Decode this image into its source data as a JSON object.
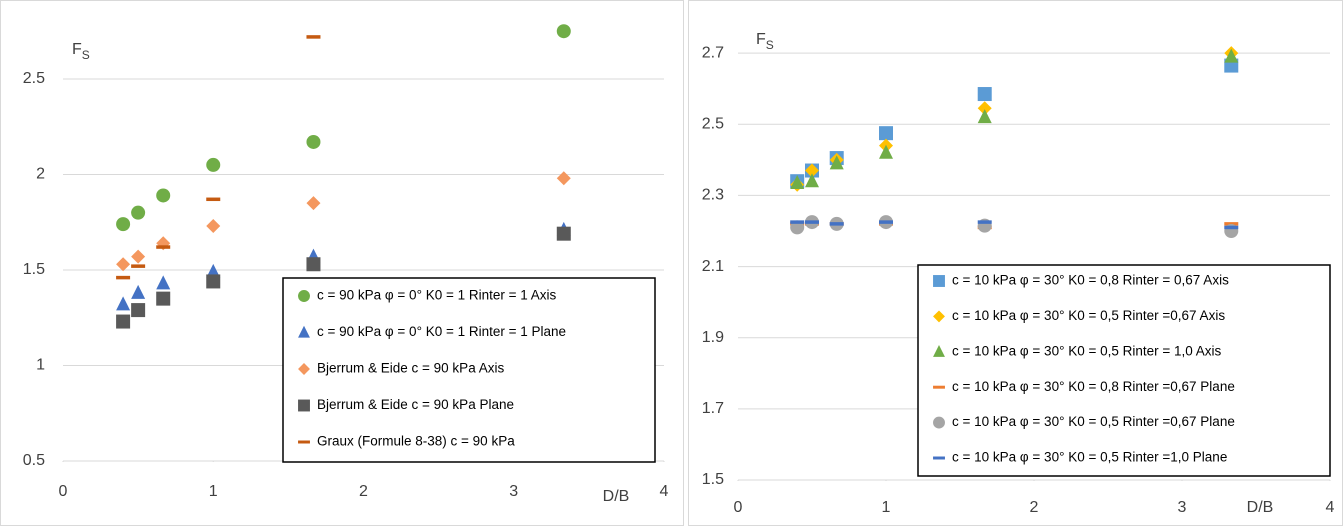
{
  "chart_data": [
    {
      "type": "scatter",
      "y_label": "F",
      "y_label_sub": "S",
      "x_label": "D/B",
      "xlim": [
        0,
        4
      ],
      "xticks": [
        0,
        1,
        2,
        3,
        4
      ],
      "ylim": [
        0.5,
        2.84
      ],
      "yticks": [
        0.5,
        1,
        1.5,
        2,
        2.5
      ],
      "grid": true,
      "series": [
        {
          "name": "c = 90 kPa φ = 0° K0 = 1 Rinter = 1 Axis",
          "color": "#70ad47",
          "marker": "circle",
          "x": [
            0.4,
            0.5,
            0.667,
            1,
            1.667,
            3.333
          ],
          "values": [
            1.74,
            1.8,
            1.89,
            2.05,
            2.17,
            2.75
          ]
        },
        {
          "name": "c = 90 kPa φ = 0° K0 = 1 Rinter = 1 Plane",
          "color": "#4472c4",
          "marker": "triangle",
          "x": [
            0.4,
            0.5,
            0.667,
            1,
            1.667,
            3.333
          ],
          "values": [
            1.32,
            1.38,
            1.43,
            1.49,
            1.57,
            1.71
          ]
        },
        {
          "name": "Bjerrum & Eide c = 90 kPa Axis",
          "color": "#f4975e",
          "marker": "diamond",
          "x": [
            0.4,
            0.5,
            0.667,
            1,
            1.667,
            3.333
          ],
          "values": [
            1.53,
            1.57,
            1.64,
            1.73,
            1.85,
            1.98
          ]
        },
        {
          "name": "Bjerrum & Eide c = 90 kPa Plane",
          "color": "#595959",
          "marker": "square",
          "x": [
            0.4,
            0.5,
            0.667,
            1,
            1.667,
            3.333
          ],
          "values": [
            1.23,
            1.29,
            1.35,
            1.44,
            1.53,
            1.69
          ]
        },
        {
          "name": "Graux (Formule 8-38) c = 90 kPa",
          "color": "#c55a11",
          "marker": "dash",
          "x": [
            0.4,
            0.5,
            0.667,
            1,
            1.667
          ],
          "values": [
            1.46,
            1.52,
            1.62,
            1.87,
            2.72
          ]
        }
      ]
    },
    {
      "type": "scatter",
      "y_label": "F",
      "y_label_sub": "S",
      "x_label": "D/B",
      "xlim": [
        0,
        4
      ],
      "xticks": [
        0,
        1,
        2,
        3,
        4
      ],
      "ylim": [
        1.5,
        2.81
      ],
      "yticks": [
        1.5,
        1.7,
        1.9,
        2.1,
        2.3,
        2.5,
        2.7
      ],
      "grid": true,
      "series": [
        {
          "name": "c = 10 kPa φ = 30°  K0 = 0,8 Rinter = 0,67 Axis",
          "color": "#5b9bd5",
          "marker": "square",
          "x": [
            0.4,
            0.5,
            0.667,
            1,
            1.667,
            3.333
          ],
          "values": [
            2.34,
            2.37,
            2.405,
            2.475,
            2.585,
            2.665
          ]
        },
        {
          "name": "c = 10 kPa φ = 30°  K0 = 0,5 Rinter =0,67 Axis",
          "color": "#ffc000",
          "marker": "diamond",
          "x": [
            0.4,
            0.5,
            0.667,
            1,
            1.667,
            3.333
          ],
          "values": [
            2.33,
            2.37,
            2.4,
            2.44,
            2.545,
            2.7
          ]
        },
        {
          "name": "c = 10 kPa φ = 30°  K0 = 0,5 Rinter = 1,0 Axis",
          "color": "#70ad47",
          "marker": "triangle",
          "x": [
            0.4,
            0.5,
            0.667,
            1,
            1.667,
            3.333
          ],
          "values": [
            2.335,
            2.34,
            2.39,
            2.42,
            2.52,
            2.69
          ]
        },
        {
          "name": "c = 10 kPa φ = 30°  K0 = 0,8 Rinter =0,67 Plane",
          "color": "#ed7d31",
          "marker": "dash",
          "x": [
            0.4,
            0.5,
            0.667,
            1,
            1.667,
            3.333
          ],
          "values": [
            2.22,
            2.22,
            2.22,
            2.22,
            2.21,
            2.22
          ]
        },
        {
          "name": "c = 10 kPa φ = 30°  K0 = 0,5 Rinter =0,67 Plane",
          "color": "#a5a5a5",
          "marker": "circle",
          "x": [
            0.4,
            0.5,
            0.667,
            1,
            1.667,
            3.333
          ],
          "values": [
            2.21,
            2.225,
            2.22,
            2.225,
            2.215,
            2.2
          ]
        },
        {
          "name": "c = 10 kPa φ = 30°  K0 = 0,5  Rinter =1,0 Plane",
          "color": "#4472c4",
          "marker": "dash",
          "x": [
            0.4,
            0.5,
            0.667,
            1,
            1.667,
            3.333
          ],
          "values": [
            2.225,
            2.225,
            2.22,
            2.225,
            2.225,
            2.21
          ]
        }
      ]
    }
  ]
}
